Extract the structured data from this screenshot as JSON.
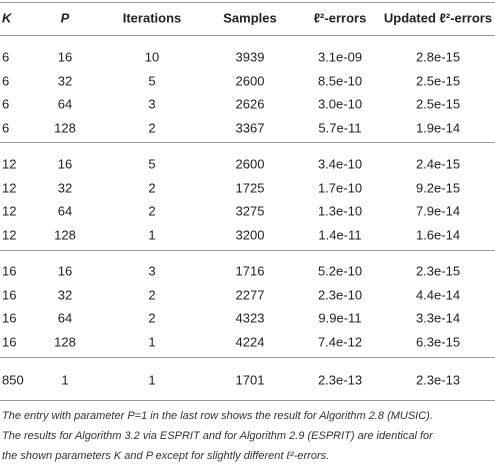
{
  "table": {
    "header": [
      "K",
      "P",
      "Iterations",
      "Samples",
      "ℓ²-errors",
      "Updated ℓ²-errors"
    ],
    "groups": [
      [
        [
          "6",
          "16",
          "10",
          "3939",
          "3.1e-09",
          "2.8e-15"
        ],
        [
          "6",
          "32",
          "5",
          "2600",
          "8.5e-10",
          "2.5e-15"
        ],
        [
          "6",
          "64",
          "3",
          "2626",
          "3.0e-10",
          "2.5e-15"
        ],
        [
          "6",
          "128",
          "2",
          "3367",
          "5.7e-11",
          "1.9e-14"
        ]
      ],
      [
        [
          "12",
          "16",
          "5",
          "2600",
          "3.4e-10",
          "2.4e-15"
        ],
        [
          "12",
          "32",
          "2",
          "1725",
          "1.7e-10",
          "9.2e-15"
        ],
        [
          "12",
          "64",
          "2",
          "3275",
          "1.3e-10",
          "7.9e-14"
        ],
        [
          "12",
          "128",
          "1",
          "3200",
          "1.4e-11",
          "1.6e-14"
        ]
      ],
      [
        [
          "16",
          "16",
          "3",
          "1716",
          "5.2e-10",
          "2.3e-15"
        ],
        [
          "16",
          "32",
          "2",
          "2277",
          "2.3e-10",
          "4.4e-14"
        ],
        [
          "16",
          "64",
          "2",
          "4323",
          "9.9e-11",
          "3.3e-14"
        ],
        [
          "16",
          "128",
          "1",
          "4224",
          "7.4e-12",
          "6.3e-15"
        ]
      ],
      [
        [
          "850",
          "1",
          "1",
          "1701",
          "2.3e-13",
          "2.3e-13"
        ]
      ]
    ]
  },
  "footnote": [
    "The entry with parameter P=1 in the last row shows the result for Algorithm 2.8 (MUSIC).",
    "The results for Algorithm 3.2 via ESPRIT and for Algorithm 2.9 (ESPRIT) are identical for",
    "the shown parameters K and P except for slightly different ℓ²-errors."
  ]
}
